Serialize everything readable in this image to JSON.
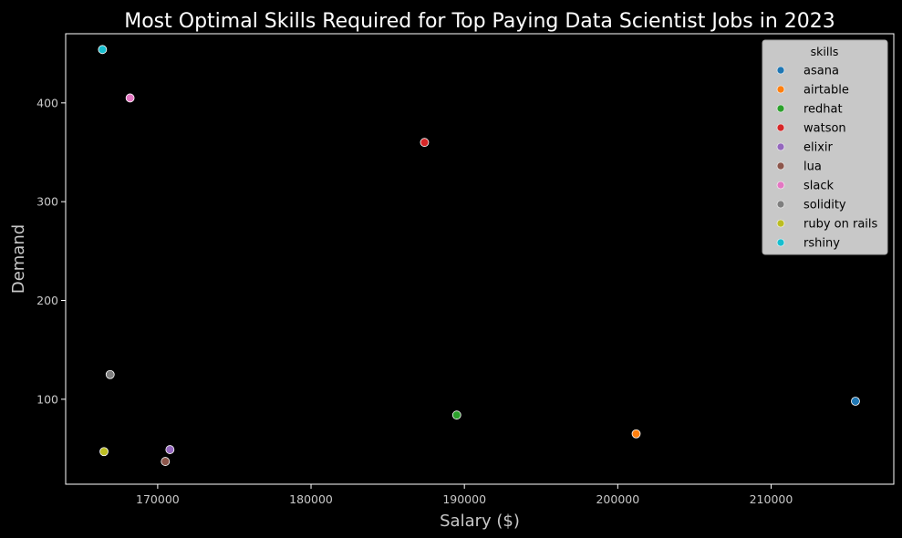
{
  "chart_data": {
    "type": "scatter",
    "title": "Most Optimal Skills Required for Top Paying Data Scientist Jobs in 2023",
    "xlabel": "Salary ($)",
    "ylabel": "Demand",
    "xlim": [
      164000,
      218000
    ],
    "ylim": [
      14,
      470
    ],
    "xticks": [
      170000,
      180000,
      190000,
      200000,
      210000
    ],
    "yticks": [
      100,
      200,
      300,
      400
    ],
    "grid": false,
    "legend": {
      "title": "skills",
      "placement": "top-right"
    },
    "series": [
      {
        "name": "asana",
        "color": "#1f77b4",
        "x": 215500,
        "y": 98
      },
      {
        "name": "airtable",
        "color": "#ff7f0e",
        "x": 201200,
        "y": 65
      },
      {
        "name": "redhat",
        "color": "#2ca02c",
        "x": 189500,
        "y": 84
      },
      {
        "name": "watson",
        "color": "#d62728",
        "x": 187400,
        "y": 360
      },
      {
        "name": "elixir",
        "color": "#9467bd",
        "x": 170800,
        "y": 49
      },
      {
        "name": "lua",
        "color": "#8c564b",
        "x": 170500,
        "y": 37
      },
      {
        "name": "slack",
        "color": "#e377c2",
        "x": 168200,
        "y": 405
      },
      {
        "name": "solidity",
        "color": "#7f7f7f",
        "x": 166900,
        "y": 125
      },
      {
        "name": "ruby on rails",
        "color": "#bcbd22",
        "x": 166500,
        "y": 47
      },
      {
        "name": "rshiny",
        "color": "#17becf",
        "x": 166400,
        "y": 454
      }
    ]
  }
}
